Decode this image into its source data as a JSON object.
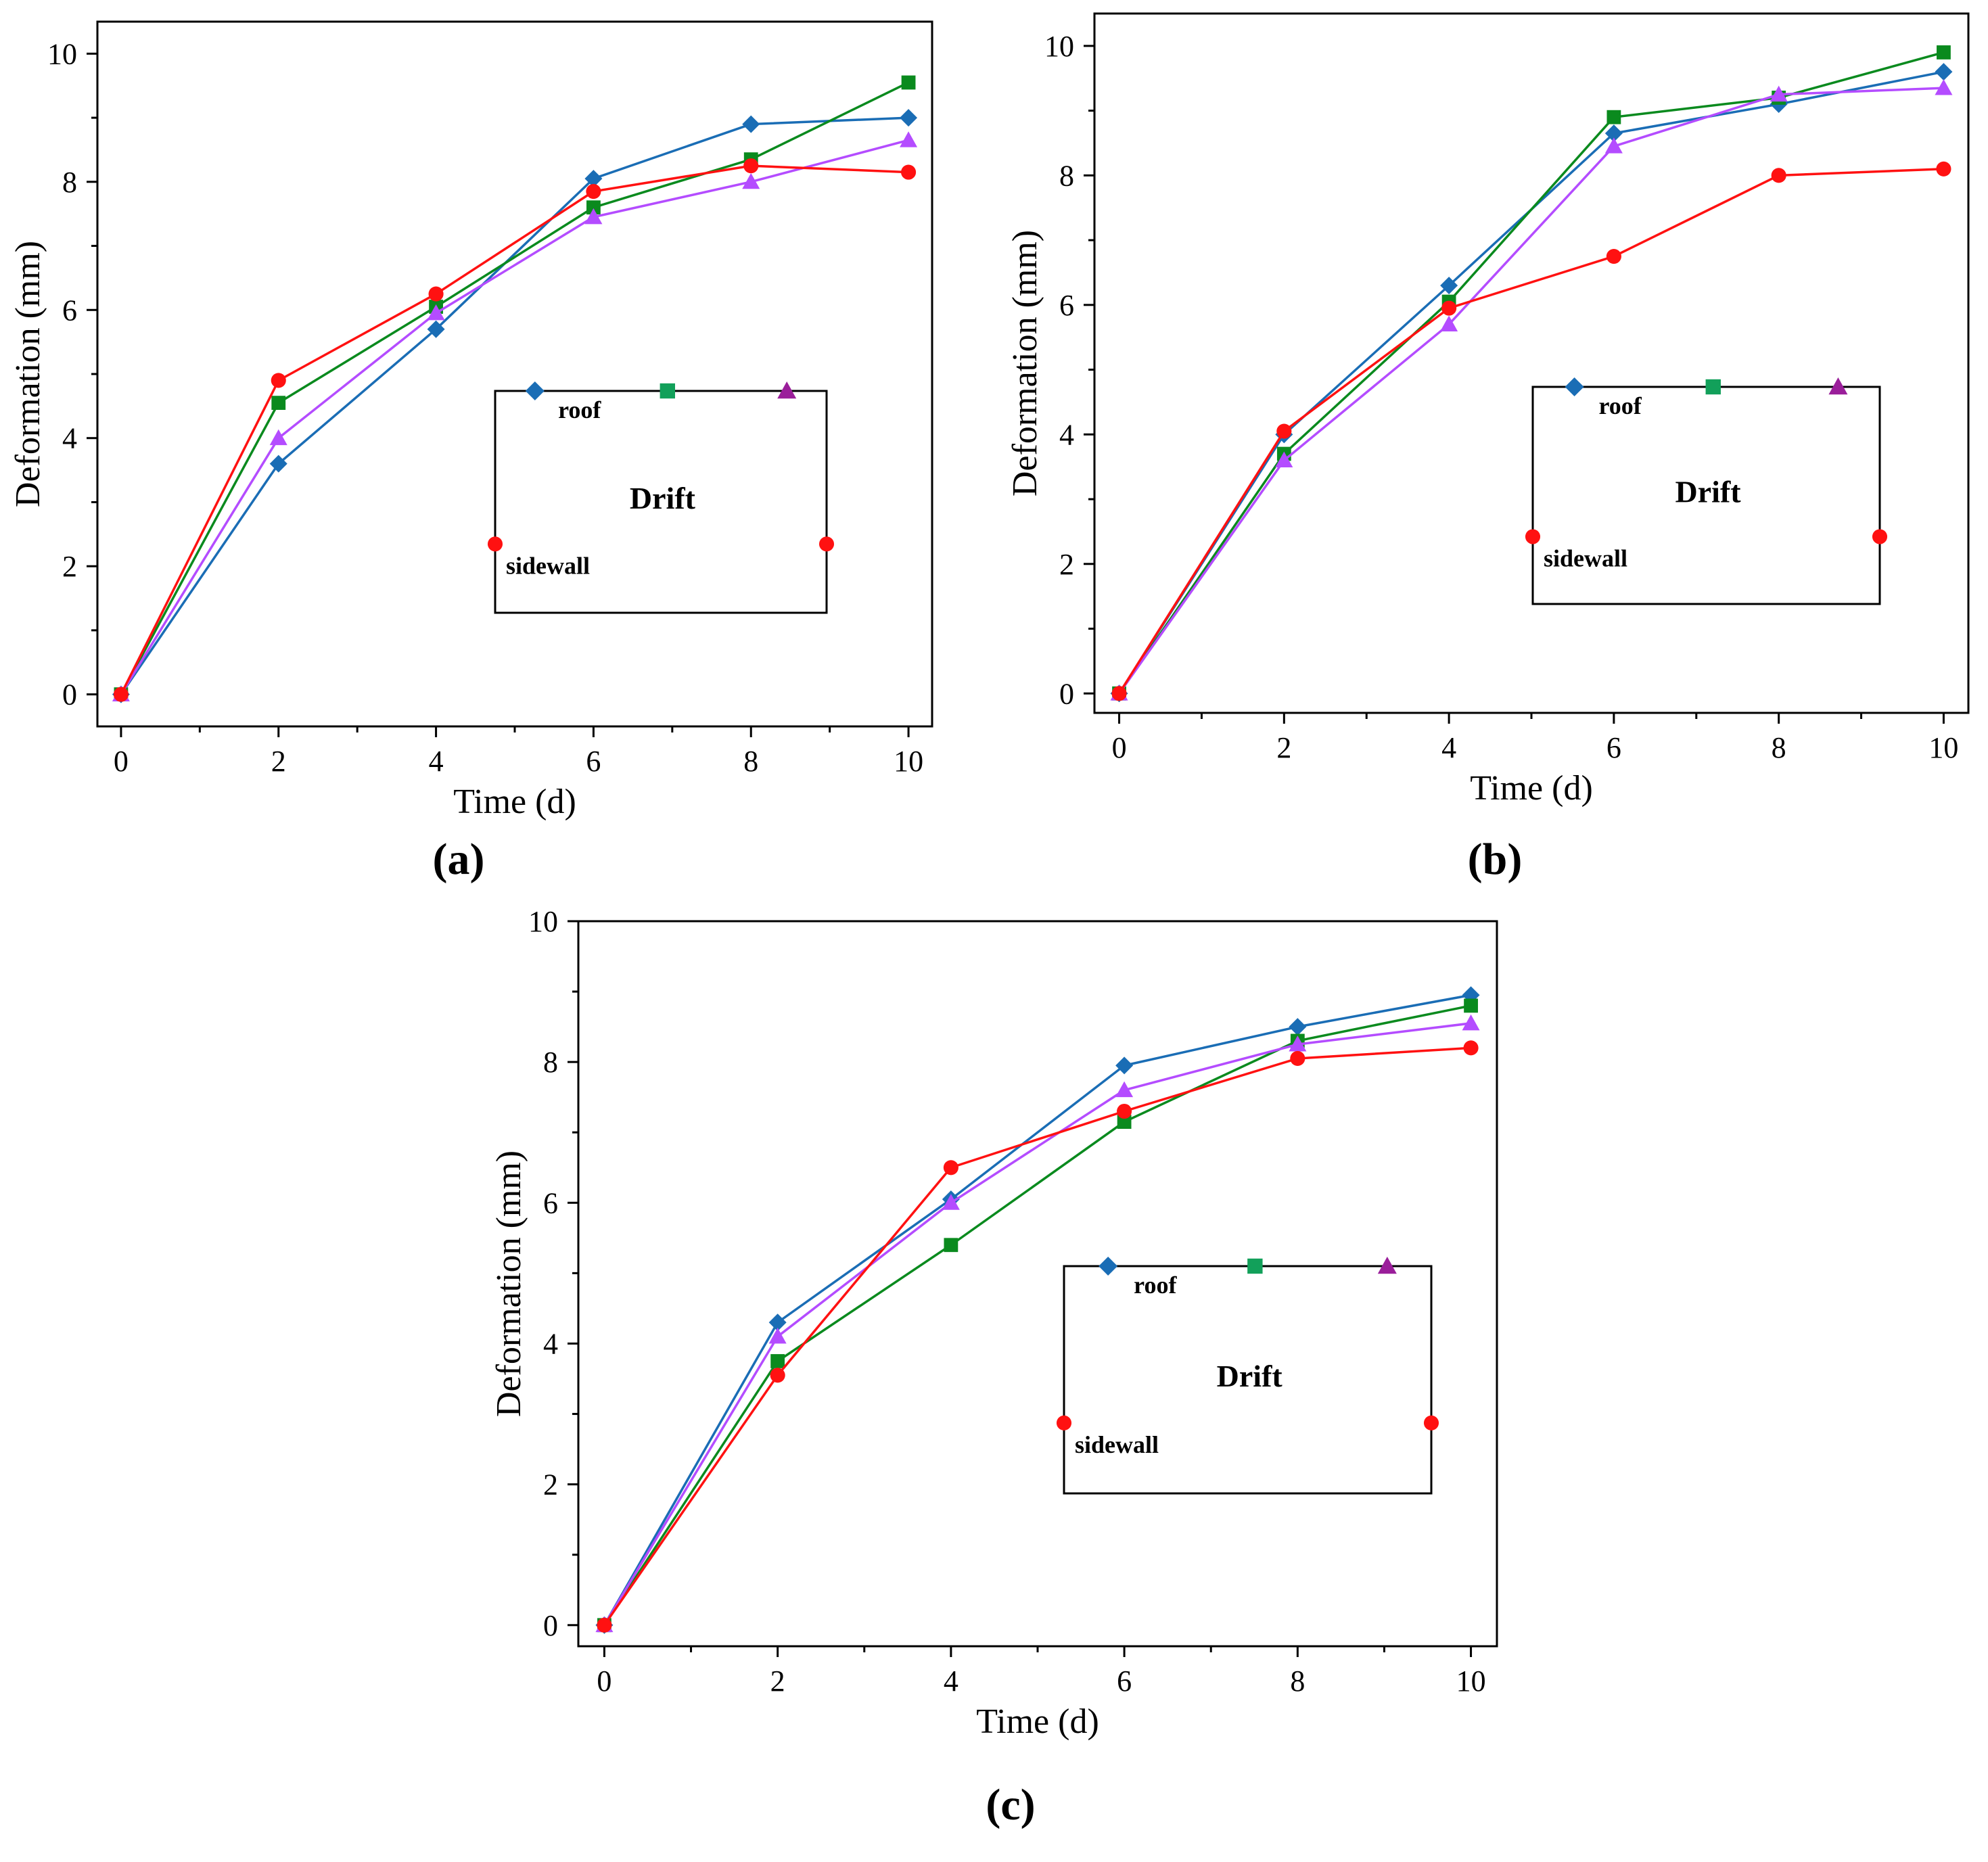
{
  "colors": {
    "roof": "#1a6db5",
    "green": "#0a8a1e",
    "violet": "#b44cff",
    "sidewall": "#ff1111",
    "legend_green": "#12a05a",
    "legend_violet": "#9a1e9a",
    "axis": "#000000"
  },
  "chart_data": [
    {
      "type": "line",
      "panel_label": "(a)",
      "xlabel": "Time (d)",
      "ylabel": "Deformation (mm)",
      "xlim": [
        -0.3,
        10.3
      ],
      "ylim": [
        -0.5,
        10.5
      ],
      "xticks": [
        "0",
        "2",
        "4",
        "6",
        "8",
        "10"
      ],
      "yticks": [
        "0",
        "2",
        "4",
        "6",
        "8",
        "10"
      ],
      "x": [
        0,
        2,
        4,
        6,
        8,
        10
      ],
      "series": [
        {
          "key": "roof",
          "name": "roof",
          "marker": "diamond",
          "values": [
            0,
            3.6,
            5.7,
            8.05,
            8.9,
            9.0
          ]
        },
        {
          "key": "green",
          "name": "",
          "marker": "square",
          "values": [
            0,
            4.55,
            6.05,
            7.6,
            8.35,
            9.55
          ]
        },
        {
          "key": "violet",
          "name": "",
          "marker": "triangle",
          "values": [
            0,
            4.0,
            5.95,
            7.45,
            8.0,
            8.65
          ]
        },
        {
          "key": "sidewall",
          "name": "sidewall",
          "marker": "circle",
          "values": [
            0,
            4.9,
            6.25,
            7.85,
            8.25,
            8.15
          ]
        }
      ],
      "legend": {
        "title": "Drift",
        "roof_label": "roof",
        "sidewall_label": "sidewall"
      }
    },
    {
      "type": "line",
      "panel_label": "(b)",
      "xlabel": "Time (d)",
      "ylabel": "Deformation (mm)",
      "xlim": [
        -0.3,
        10.3
      ],
      "ylim": [
        -0.3,
        10.5
      ],
      "xticks": [
        "0",
        "2",
        "4",
        "6",
        "8",
        "10"
      ],
      "yticks": [
        "0",
        "2",
        "4",
        "6",
        "8",
        "10"
      ],
      "x": [
        0,
        2,
        4,
        6,
        8,
        10
      ],
      "series": [
        {
          "key": "roof",
          "name": "roof",
          "marker": "diamond",
          "values": [
            0,
            4.0,
            6.3,
            8.65,
            9.1,
            9.6
          ]
        },
        {
          "key": "green",
          "name": "",
          "marker": "square",
          "values": [
            0,
            3.7,
            6.05,
            8.9,
            9.2,
            9.9
          ]
        },
        {
          "key": "violet",
          "name": "",
          "marker": "triangle",
          "values": [
            0,
            3.6,
            5.7,
            8.45,
            9.25,
            9.35
          ]
        },
        {
          "key": "sidewall",
          "name": "sidewall",
          "marker": "circle",
          "values": [
            0,
            4.05,
            5.95,
            6.75,
            8.0,
            8.1
          ]
        }
      ],
      "legend": {
        "title": "Drift",
        "roof_label": "roof",
        "sidewall_label": "sidewall"
      }
    },
    {
      "type": "line",
      "panel_label": "(c)",
      "xlabel": "Time (d)",
      "ylabel": "Deformation (mm)",
      "xlim": [
        -0.3,
        10.3
      ],
      "ylim": [
        -0.3,
        10.0
      ],
      "xticks": [
        "0",
        "2",
        "4",
        "6",
        "8",
        "10"
      ],
      "yticks": [
        "0",
        "2",
        "4",
        "6",
        "8",
        "10"
      ],
      "x": [
        0,
        2,
        4,
        6,
        8,
        10
      ],
      "series": [
        {
          "key": "roof",
          "name": "roof",
          "marker": "diamond",
          "values": [
            0,
            4.3,
            6.05,
            7.95,
            8.5,
            8.95
          ]
        },
        {
          "key": "green",
          "name": "",
          "marker": "square",
          "values": [
            0,
            3.75,
            5.4,
            7.15,
            8.3,
            8.8
          ]
        },
        {
          "key": "violet",
          "name": "",
          "marker": "triangle",
          "values": [
            0,
            4.1,
            6.0,
            7.6,
            8.25,
            8.55
          ]
        },
        {
          "key": "sidewall",
          "name": "sidewall",
          "marker": "circle",
          "values": [
            0,
            3.55,
            6.5,
            7.3,
            8.05,
            8.2
          ]
        }
      ],
      "legend": {
        "title": "Drift",
        "roof_label": "roof",
        "sidewall_label": "sidewall"
      }
    }
  ]
}
